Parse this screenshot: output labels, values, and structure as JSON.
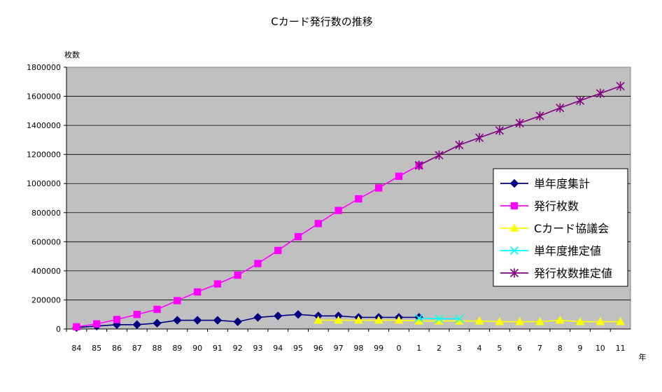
{
  "chart_data": {
    "type": "line",
    "title": "Cカード発行数の推移",
    "ylabel": "枚数",
    "xlabel": "年",
    "ylim": [
      0,
      1800000
    ],
    "yticks": [
      0,
      200000,
      400000,
      600000,
      800000,
      1000000,
      1200000,
      1400000,
      1600000,
      1800000
    ],
    "categories": [
      "84",
      "85",
      "86",
      "87",
      "88",
      "89",
      "90",
      "91",
      "92",
      "93",
      "94",
      "95",
      "96",
      "97",
      "98",
      "99",
      "0",
      "1",
      "2",
      "3",
      "4",
      "5",
      "6",
      "7",
      "8",
      "9",
      "10",
      "11"
    ],
    "grid": true,
    "legend_position": "right",
    "plot_background": "#c0c0c0",
    "series": [
      {
        "name": "単年度集計",
        "color": "#000080",
        "marker": "diamond",
        "values": [
          10000,
          20000,
          30000,
          30000,
          40000,
          60000,
          60000,
          60000,
          50000,
          80000,
          90000,
          100000,
          90000,
          90000,
          80000,
          80000,
          80000,
          80000,
          null,
          null,
          null,
          null,
          null,
          null,
          null,
          null,
          null,
          null
        ]
      },
      {
        "name": "発行枚数",
        "color": "#ff00ff",
        "marker": "square",
        "values": [
          15000,
          35000,
          65000,
          100000,
          135000,
          195000,
          255000,
          310000,
          370000,
          450000,
          540000,
          635000,
          725000,
          815000,
          895000,
          970000,
          1050000,
          1125000,
          null,
          null,
          null,
          null,
          null,
          null,
          null,
          null,
          null,
          null
        ]
      },
      {
        "name": "Cカード協議会",
        "color": "#ffff00",
        "marker": "triangle",
        "values": [
          null,
          null,
          null,
          null,
          null,
          null,
          null,
          null,
          null,
          null,
          null,
          null,
          60000,
          60000,
          60000,
          60000,
          60000,
          55000,
          55000,
          55000,
          55000,
          50000,
          50000,
          50000,
          60000,
          50000,
          50000,
          50000
        ]
      },
      {
        "name": "単年度推定値",
        "color": "#00ffff",
        "marker": "x",
        "values": [
          null,
          null,
          null,
          null,
          null,
          null,
          null,
          null,
          null,
          null,
          null,
          null,
          null,
          null,
          null,
          null,
          null,
          75000,
          70000,
          70000,
          null,
          null,
          null,
          null,
          null,
          null,
          null,
          null
        ]
      },
      {
        "name": "発行枚数推定値",
        "color": "#800080",
        "marker": "star",
        "values": [
          null,
          null,
          null,
          null,
          null,
          null,
          null,
          null,
          null,
          null,
          null,
          null,
          null,
          null,
          null,
          null,
          null,
          1125000,
          1195000,
          1265000,
          1315000,
          1365000,
          1415000,
          1465000,
          1520000,
          1570000,
          1620000,
          1670000
        ]
      }
    ]
  }
}
